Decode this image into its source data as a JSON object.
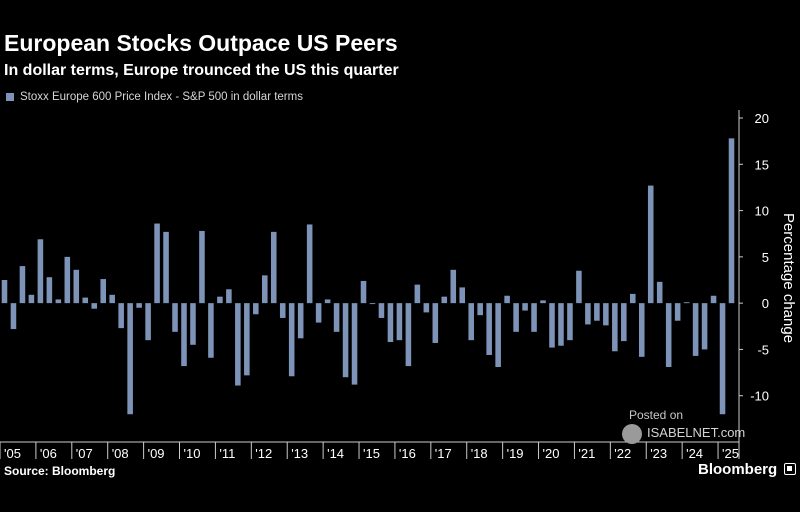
{
  "header": {
    "title": "European Stocks Outpace US Peers",
    "subtitle": "In dollar terms, Europe trounced the US this quarter"
  },
  "footer": {
    "source": "Source: Bloomberg",
    "brand": "Bloomberg"
  },
  "watermark": {
    "posted": "Posted on",
    "site": "ISABELNET.com"
  },
  "colors": {
    "background": "#000000",
    "bar": "#7d93b8",
    "text": "#ffffff",
    "axis": "#cccccc"
  },
  "chart_data": {
    "type": "bar",
    "title": "European Stocks Outpace US Peers",
    "subtitle": "In dollar terms, Europe trounced the US this quarter",
    "legend": [
      "Stoxx Europe 600 Price Index - S&P 500 in dollar terms"
    ],
    "legend_position": "top-left",
    "xlabel": "",
    "ylabel": "Percentage change",
    "y_axis_side": "right",
    "ylim": [
      -15,
      20
    ],
    "yticks": [
      20,
      15,
      10,
      5,
      0,
      -5,
      -10
    ],
    "ytick_labels": [
      "20",
      "15",
      "10",
      "5",
      "0",
      "-5",
      "-10"
    ],
    "xtick_labels": [
      "'05",
      "'06",
      "'07",
      "'08",
      "'09",
      "'10",
      "'11",
      "'12",
      "'13",
      "'14",
      "'15",
      "'16",
      "'17",
      "'18",
      "'19",
      "'20",
      "'21",
      "'22",
      "'23",
      "'24",
      "'25"
    ],
    "periods_per_label": 4,
    "grid": false,
    "series": [
      {
        "name": "Stoxx Europe 600 Price Index - S&P 500 in dollar terms",
        "values": [
          2.5,
          -2.8,
          4.0,
          0.9,
          6.9,
          2.8,
          0.4,
          5.0,
          3.6,
          0.6,
          -0.6,
          2.6,
          0.9,
          -2.7,
          -12.0,
          -0.5,
          -4.0,
          8.6,
          7.7,
          -3.1,
          -6.8,
          -4.5,
          7.8,
          -5.9,
          0.7,
          1.5,
          -8.9,
          -7.8,
          -1.2,
          3.0,
          7.7,
          -1.6,
          -7.9,
          -3.8,
          8.5,
          -2.1,
          0.4,
          -3.1,
          -8.0,
          -8.8,
          2.4,
          -0.1,
          -1.6,
          -4.2,
          -4.0,
          -6.8,
          2.0,
          -1.0,
          -4.3,
          0.7,
          3.6,
          1.7,
          -4.0,
          -1.3,
          -5.6,
          -6.9,
          0.8,
          -3.1,
          -0.8,
          -3.1,
          0.3,
          -4.8,
          -4.6,
          -4.0,
          3.5,
          -2.3,
          -1.9,
          -2.4,
          -5.2,
          -4.1,
          1.0,
          -5.8,
          12.7,
          2.3,
          -6.9,
          -1.9,
          0.1,
          -5.7,
          -5.0,
          0.8,
          -12.0,
          17.8
        ]
      }
    ]
  }
}
